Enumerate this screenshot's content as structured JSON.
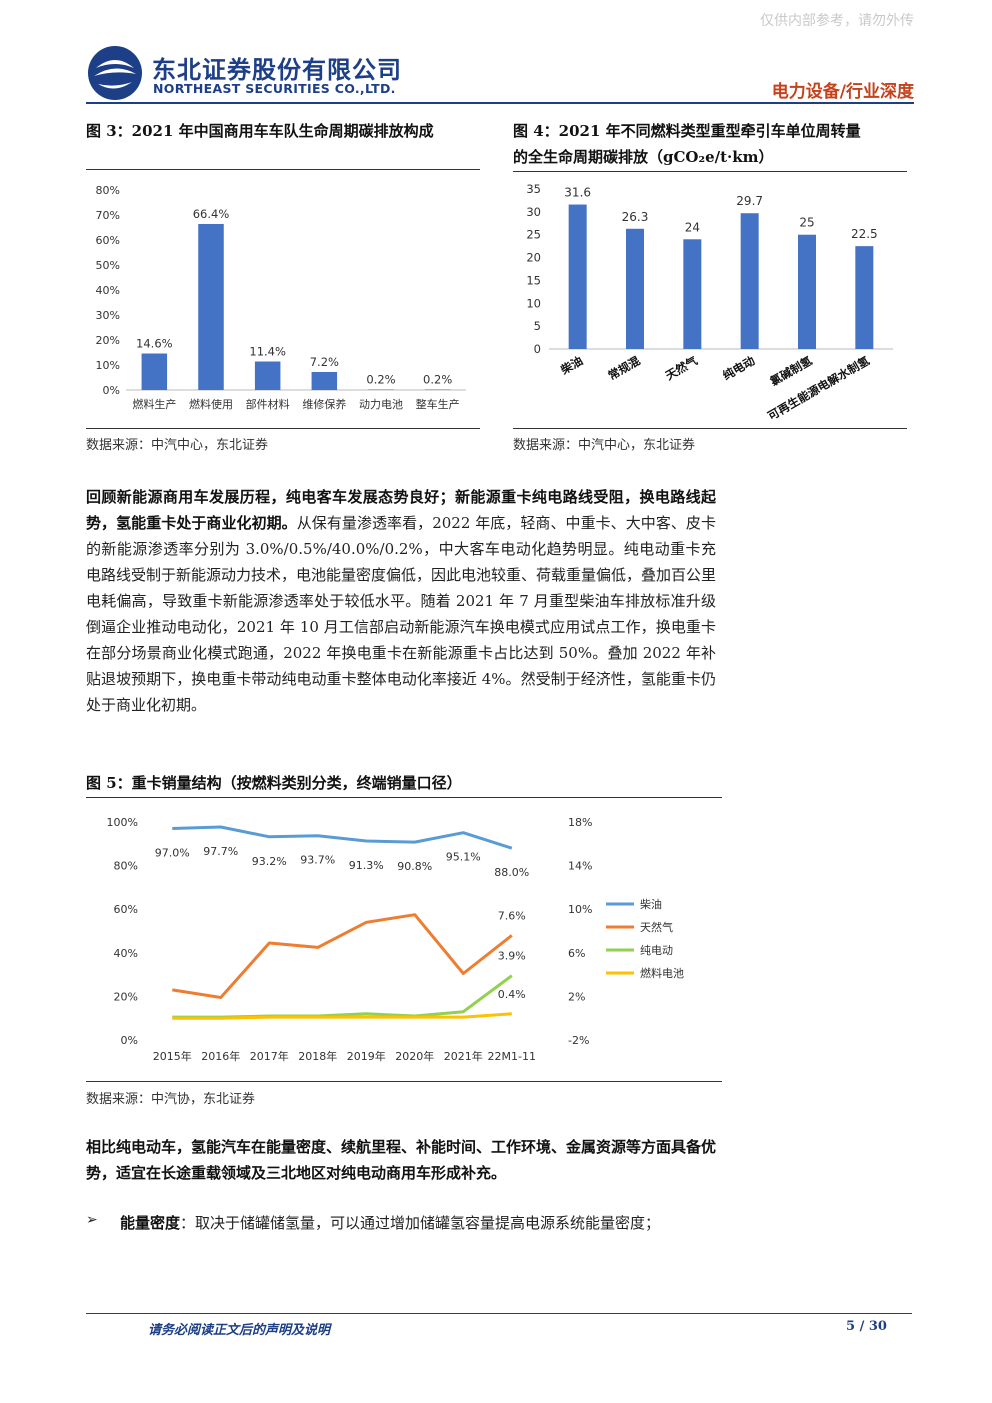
{
  "watermark": "仅供内部参考，请勿外传",
  "company": {
    "name_cn": "东北证券股份有限公司",
    "name_en": "NORTHEAST SECURITIES CO.,LTD."
  },
  "report_type": "电力设备/行业深度",
  "figures": {
    "fig3": {
      "title": "图 3：2021 年中国商用车车队生命周期碳排放构成",
      "source": "数据来源：中汽中心，东北证券"
    },
    "fig4": {
      "title_line1": "图 4：2021 年不同燃料类型重型牵引车单位周转量",
      "title_line2": "的全生命周期碳排放（gCO₂e/t·km）",
      "source": "数据来源：中汽中心，东北证券"
    },
    "fig5": {
      "title": "图 5：重卡销量结构（按燃料类别分类，终端销量口径）",
      "source": "数据来源：中汽协，东北证券"
    }
  },
  "paragraph1": {
    "bold": "回顾新能源商用车发展历程，纯电客车发展态势良好；新能源重卡纯电路线受阻，换电路线起势，氢能重卡处于商业化初期。",
    "text": "从保有量渗透率看，2022 年底，轻商、中重卡、大中客、皮卡的新能源渗透率分别为 3.0%/0.5%/40.0%/0.2%，中大客车电动化趋势明显。纯电动重卡充电路线受制于新能源动力技术，电池能量密度偏低，因此电池较重、荷载重量偏低，叠加百公里电耗偏高，导致重卡新能源渗透率处于较低水平。随着 2021 年 7 月重型柴油车排放标准升级倒逼企业推动电动化，2021 年 10 月工信部启动新能源汽车换电模式应用试点工作，换电重卡在部分场景商业化模式跑通，2022 年换电重卡在新能源重卡占比达到 50%。叠加 2022 年补贴退坡预期下，换电重卡带动纯电动重卡整体电动化率接近 4%。然受制于经济性，氢能重卡仍处于商业化初期。"
  },
  "paragraph2": {
    "bold": "相比纯电动车，氢能汽车在能量密度、续航里程、补能时间、工作环境、金属资源等方面具备优势，适宜在长途重载领域及三北地区对纯电动商用车形成补充。"
  },
  "bullet1": {
    "bold": "能量密度",
    "text": "：取决于储罐储氢量，可以通过增加储罐氢容量提高电源系统能量密度；"
  },
  "footer": {
    "left": "请务必阅读正文后的声明及说明",
    "page": "5 / 30"
  },
  "chart_data": [
    {
      "id": "fig3",
      "type": "bar",
      "categories": [
        "燃料生产",
        "燃料使用",
        "部件材料",
        "维修保养",
        "动力电池",
        "整车生产"
      ],
      "values": [
        14.6,
        66.4,
        11.4,
        7.2,
        0.2,
        0.2
      ],
      "value_labels": [
        "14.6%",
        "66.4%",
        "11.4%",
        "7.2%",
        "0.2%",
        "0.2%"
      ],
      "ylim": [
        0,
        80
      ],
      "yticks": [
        "0%",
        "10%",
        "20%",
        "30%",
        "40%",
        "50%",
        "60%",
        "70%",
        "80%"
      ],
      "color": "#4472c4"
    },
    {
      "id": "fig4",
      "type": "bar",
      "categories": [
        "柴油",
        "常规混",
        "天然气",
        "纯电动",
        "氯碱制氢",
        "可再生能源电解水制氢"
      ],
      "values": [
        31.6,
        26.3,
        24,
        29.7,
        25,
        22.5
      ],
      "value_labels": [
        "31.6",
        "26.3",
        "24",
        "29.7",
        "25",
        "22.5"
      ],
      "ylim": [
        0,
        35
      ],
      "yticks": [
        "0",
        "5",
        "10",
        "15",
        "20",
        "25",
        "30",
        "35"
      ],
      "color": "#4472c4"
    },
    {
      "id": "fig5",
      "type": "line",
      "x": [
        "2015年",
        "2016年",
        "2017年",
        "2018年",
        "2019年",
        "2020年",
        "2021年",
        "22M1-11"
      ],
      "left_yticks": [
        "0%",
        "20%",
        "40%",
        "60%",
        "80%",
        "100%"
      ],
      "left_ylim": [
        0,
        100
      ],
      "right_yticks": [
        "-2%",
        "2%",
        "6%",
        "10%",
        "14%",
        "18%"
      ],
      "right_ylim": [
        -2,
        18
      ],
      "series": [
        {
          "name": "柴油",
          "axis": "left",
          "color": "#5b9bd5",
          "values": [
            97.0,
            97.7,
            93.2,
            93.7,
            91.3,
            90.8,
            95.1,
            88.0
          ],
          "labels": [
            "97.0%",
            "97.7%",
            "93.2%",
            "93.7%",
            "91.3%",
            "90.8%",
            "95.1%",
            "88.0%"
          ]
        },
        {
          "name": "天然气",
          "axis": "right",
          "color": "#ed7d31",
          "values": [
            2.6,
            1.9,
            6.9,
            6.5,
            8.8,
            9.5,
            4.1,
            7.6
          ],
          "labels": [
            "",
            "",
            "",
            "",
            "",
            "",
            "",
            "7.6%"
          ]
        },
        {
          "name": "纯电动",
          "axis": "right",
          "color": "#92d050",
          "values": [
            0.1,
            0.1,
            0.2,
            0.2,
            0.4,
            0.2,
            0.6,
            3.9
          ],
          "labels": [
            "",
            "",
            "",
            "",
            "",
            "",
            "",
            "3.9%"
          ]
        },
        {
          "name": "燃料电池",
          "axis": "right",
          "color": "#ffc000",
          "values": [
            0.0,
            0.0,
            0.1,
            0.1,
            0.1,
            0.1,
            0.1,
            0.4
          ],
          "labels": [
            "",
            "",
            "",
            "",
            "",
            "",
            "",
            "0.4%"
          ]
        }
      ]
    }
  ]
}
